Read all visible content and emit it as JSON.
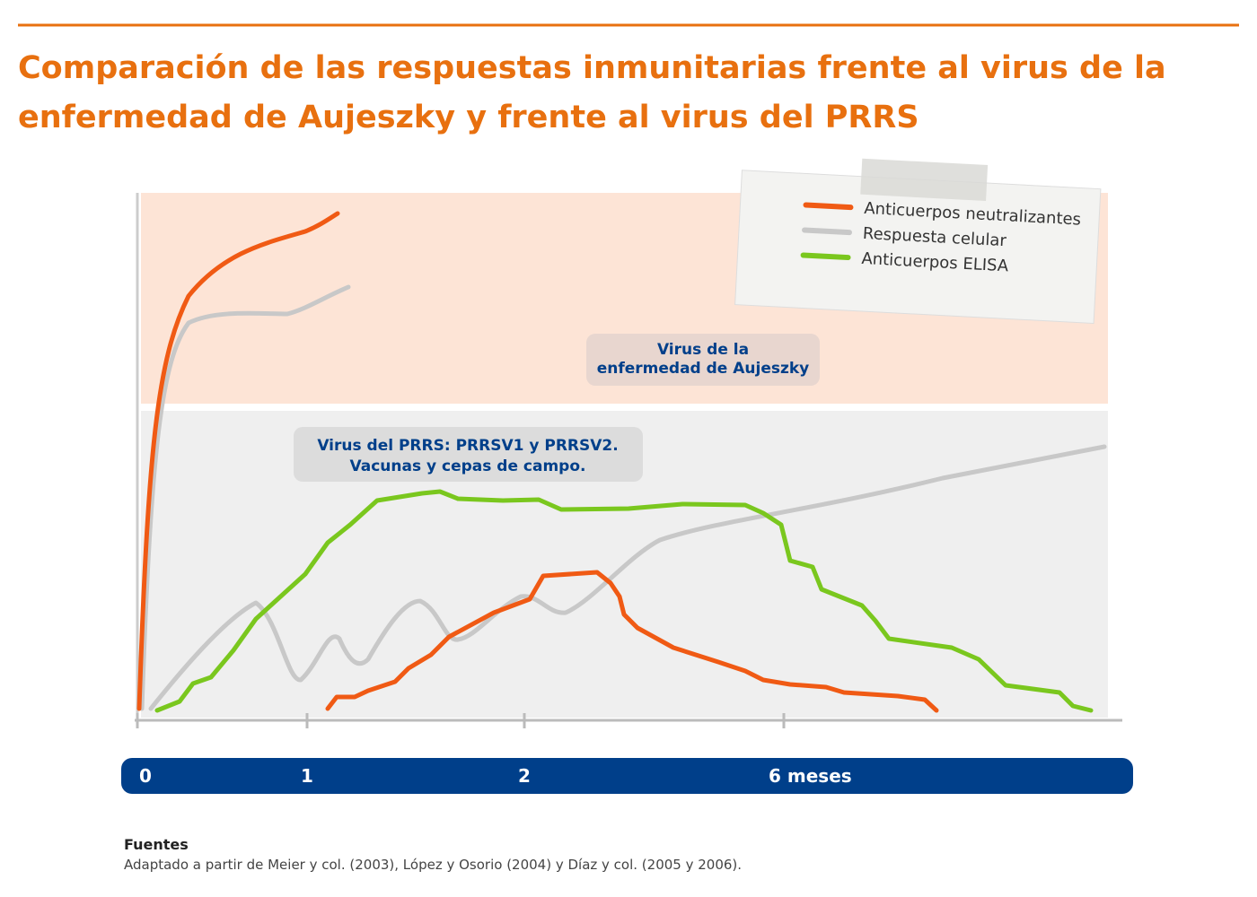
{
  "header": {
    "title_lines": [
      "Comparación de las respuestas inmunitarias frente al virus de la",
      "enfermedad de Aujeszky y frente al virus del PRRS"
    ]
  },
  "legend": {
    "items": [
      {
        "label": "Anticuerpos neutralizantes",
        "color": "#f05a14"
      },
      {
        "label": "Respuesta celular",
        "color": "#c8c8c8"
      },
      {
        "label": "Anticuerpos ELISA",
        "color": "#7ac71e"
      }
    ]
  },
  "regions": [
    {
      "lines": [
        "Virus de la",
        "enfermedad de Aujeszky"
      ]
    },
    {
      "lines": [
        "Virus del PRRS: PRRSV1 y PRRSV2.",
        "Vacunas y cepas de campo."
      ]
    }
  ],
  "timeline": {
    "labels": [
      "0",
      "1",
      "2",
      "6 meses"
    ]
  },
  "sources": {
    "heading": "Fuentes",
    "text": "Adaptado a partir de Meier y col. (2003), López y Osorio (2004) y Díaz y col. (2005 y 2006)."
  }
}
